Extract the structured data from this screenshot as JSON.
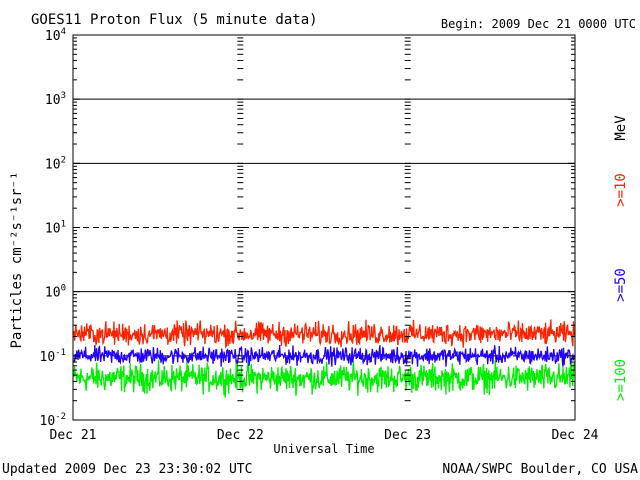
{
  "chart_data": {
    "type": "line",
    "title": "GOES11 Proton Flux (5 minute data)",
    "begin_label": "Begin: 2009 Dec 21 0000 UTC",
    "ylabel": "Particles cm⁻²s⁻¹sr⁻¹",
    "xlabel": "Universal Time",
    "y_scale": "log",
    "ylim": [
      0.01,
      10000
    ],
    "y_tick_labels": [
      {
        "value": 0.01,
        "base": "10",
        "exp": "-2"
      },
      {
        "value": 0.1,
        "base": "10",
        "exp": "-1"
      },
      {
        "value": 1,
        "base": "10",
        "exp": "0"
      },
      {
        "value": 10,
        "base": "10",
        "exp": "1"
      },
      {
        "value": 100,
        "base": "10",
        "exp": "2"
      },
      {
        "value": 1000,
        "base": "10",
        "exp": "3"
      },
      {
        "value": 10000,
        "base": "10",
        "exp": "4"
      }
    ],
    "x_tick_labels": [
      "Dec 21",
      "Dec 22",
      "Dec 23",
      "Dec 24"
    ],
    "xlim": [
      "2009-12-21 00:00",
      "2009-12-24 00:00"
    ],
    "grid": "solid lines at 1, 100, 1000; dashed at 10 and 0.1",
    "legend_placement": "right, vertical",
    "legend_unit": "MeV",
    "series": [
      {
        "name": ">=10",
        "color": "#ff2200",
        "baseline": 0.22,
        "spread": 0.13
      },
      {
        "name": ">=50",
        "color": "#2200ff",
        "baseline": 0.1,
        "spread": 0.1
      },
      {
        "name": ">=100",
        "color": "#00ee00",
        "baseline": 0.045,
        "spread": 0.16
      }
    ]
  },
  "footer": {
    "updated": "Updated 2009 Dec 23 23:30:02 UTC",
    "credit": "NOAA/SWPC Boulder, CO USA"
  }
}
